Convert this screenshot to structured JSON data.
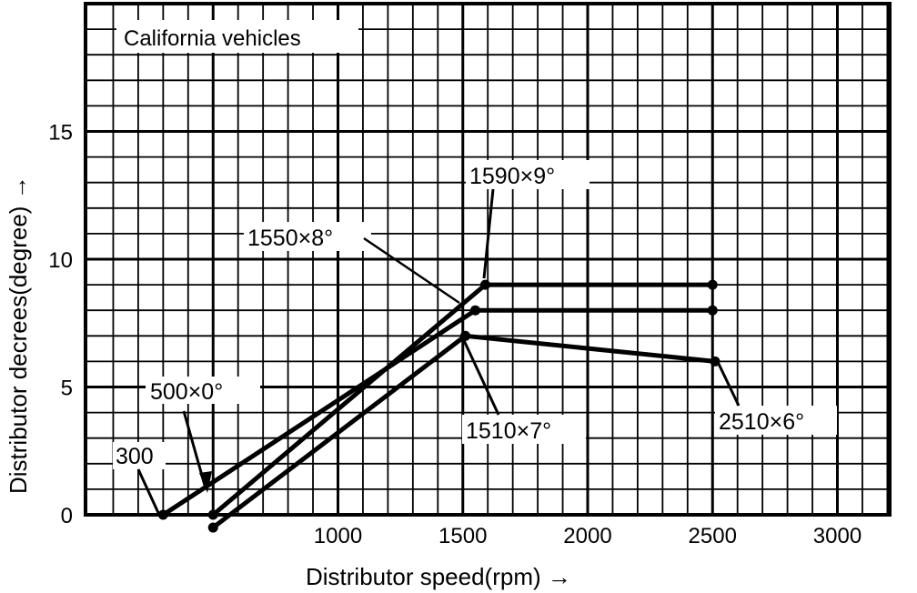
{
  "chart_data": {
    "type": "line",
    "title": "California vehicles",
    "xlabel": "Distributor speed(rpm) →",
    "ylabel": "Distributor decrees(degree) →",
    "xlim": [
      0,
      3300
    ],
    "ylim": [
      -0.5,
      20
    ],
    "x_ticks": [
      1000,
      1500,
      2000,
      2500,
      3000
    ],
    "y_ticks": [
      0,
      5,
      10,
      15
    ],
    "grid": true,
    "series": [
      {
        "x": [
          500,
          1590,
          2500
        ],
        "y": [
          0,
          9,
          9
        ]
      },
      {
        "x": [
          300,
          1550,
          2500
        ],
        "y": [
          0,
          8,
          8
        ]
      },
      {
        "x": [
          500,
          1510,
          2510
        ],
        "y": [
          -0.5,
          7,
          6
        ]
      }
    ],
    "annotations": [
      {
        "text": "300",
        "x": 300,
        "y": 0
      },
      {
        "text": "500×0°",
        "x": 500,
        "y": 0
      },
      {
        "text": "1550×8°",
        "x": 1550,
        "y": 8
      },
      {
        "text": "1590×9°",
        "x": 1590,
        "y": 9
      },
      {
        "text": "1510×7°",
        "x": 1510,
        "y": 7
      },
      {
        "text": "2510×6°",
        "x": 2510,
        "y": 6
      }
    ]
  }
}
